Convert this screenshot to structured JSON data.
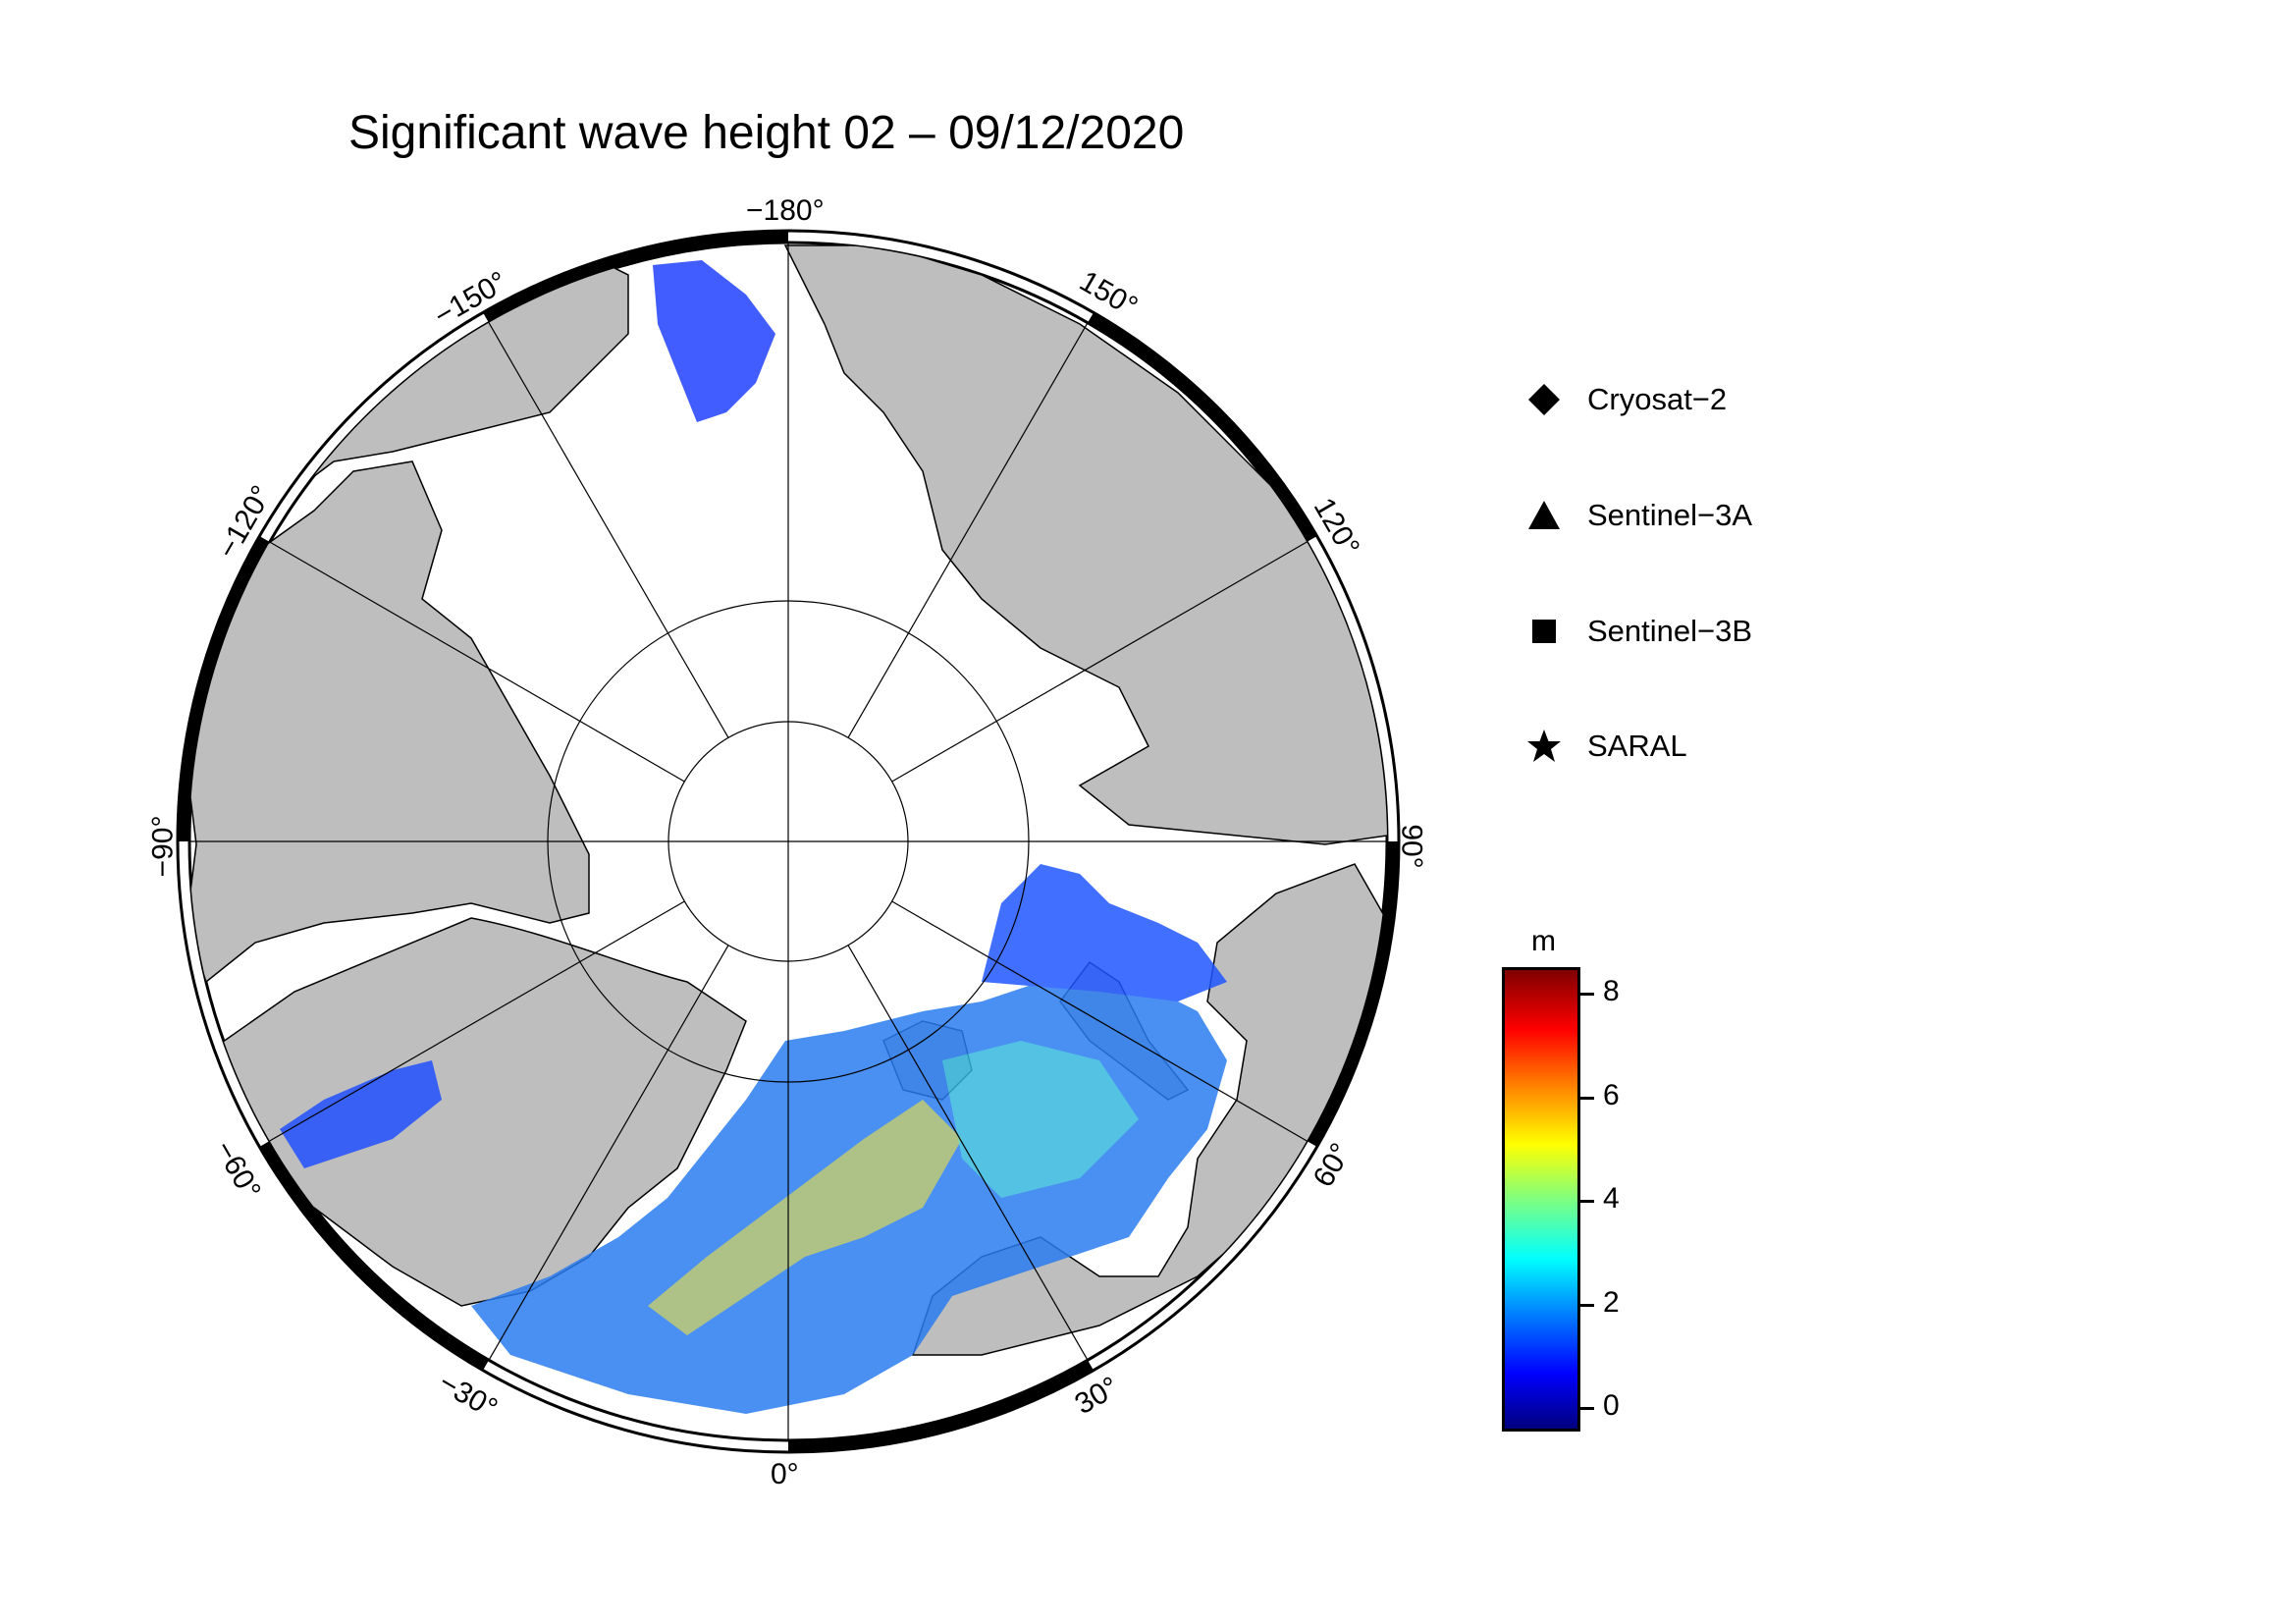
{
  "title": "Significant wave height 02 – 09/12/2020",
  "longitude_labels": [
    "−180°",
    "150°",
    "120°",
    "90°",
    "60°",
    "30°",
    "0°",
    "−30°",
    "−60°",
    "−90°",
    "−120°",
    "−150°"
  ],
  "legend": {
    "items": [
      {
        "label": "Cryosat−2",
        "symbol": "diamond"
      },
      {
        "label": "Sentinel−3A",
        "symbol": "triangle"
      },
      {
        "label": "Sentinel−3B",
        "symbol": "square"
      },
      {
        "label": "SARAL",
        "symbol": "star"
      }
    ]
  },
  "colorbar": {
    "unit": "m",
    "ticks": [
      "8",
      "6",
      "4",
      "2",
      "0"
    ],
    "range": [
      -0.5,
      8.5
    ],
    "colormap": "jet"
  },
  "colors": {
    "land": "#bebebe",
    "ocean_ice": "#ffffff",
    "frame": "#000000"
  }
}
